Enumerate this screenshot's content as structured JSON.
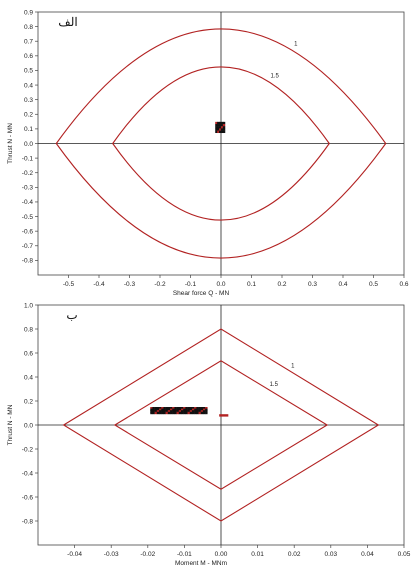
{
  "chart_data": [
    {
      "type": "line",
      "panel_label": "الف",
      "xlabel": "Shear force Q - MN",
      "ylabel": "Thrust N - MN",
      "xlim": [
        -0.6,
        0.6
      ],
      "ylim": [
        -0.9,
        0.9
      ],
      "x_ticks": [
        "-0.5",
        "-0.4",
        "-0.3",
        "-0.2",
        "-0.1",
        "0.0",
        "0.1",
        "0.2",
        "0.3",
        "0.4",
        "0.5",
        "0.6"
      ],
      "y_ticks": [
        "0.9",
        "0.8",
        "0.7",
        "0.6",
        "0.5",
        "0.4",
        "0.3",
        "0.2",
        "0.1",
        "0.0",
        "-0.1",
        "-0.2",
        "-0.3",
        "-0.4",
        "-0.5",
        "-0.6",
        "-0.7",
        "-0.8"
      ],
      "grid": false,
      "envelope_color": "#b22222",
      "marker_color": "#111111",
      "series": [
        {
          "name": "1",
          "shape": "lens",
          "x_half": 0.54,
          "y_half": 0.8
        },
        {
          "name": "1.5",
          "shape": "lens",
          "x_half": 0.355,
          "y_half": 0.535
        }
      ],
      "cluster": {
        "x_range": [
          -0.015,
          0.01
        ],
        "y_range": [
          0.08,
          0.14
        ]
      }
    },
    {
      "type": "line",
      "panel_label": "ب",
      "xlabel": "Moment M - MNm",
      "ylabel": "Thrust N - MN",
      "xlim": [
        -0.05,
        0.05
      ],
      "ylim": [
        -1.0,
        1.0
      ],
      "x_ticks": [
        "-0.04",
        "-0.03",
        "-0.02",
        "-0.01",
        "0.00",
        "0.01",
        "0.02",
        "0.03",
        "0.04",
        "0.05"
      ],
      "y_ticks": [
        "1.0",
        "0.8",
        "0.6",
        "0.4",
        "0.2",
        "0.0",
        "-0.2",
        "-0.4",
        "-0.6",
        "-0.8"
      ],
      "grid": false,
      "envelope_color": "#b22222",
      "marker_color": "#111111",
      "series": [
        {
          "name": "1",
          "shape": "diamond",
          "x_half": 0.043,
          "y_half": 0.8
        },
        {
          "name": "1.5",
          "shape": "diamond",
          "x_half": 0.029,
          "y_half": 0.535
        }
      ],
      "cluster": {
        "x_range": [
          -0.019,
          -0.004
        ],
        "y_range": [
          0.1,
          0.14
        ]
      },
      "cluster2": {
        "x_range": [
          -0.0005,
          0.002
        ],
        "y_range": [
          0.07,
          0.09
        ]
      }
    }
  ]
}
